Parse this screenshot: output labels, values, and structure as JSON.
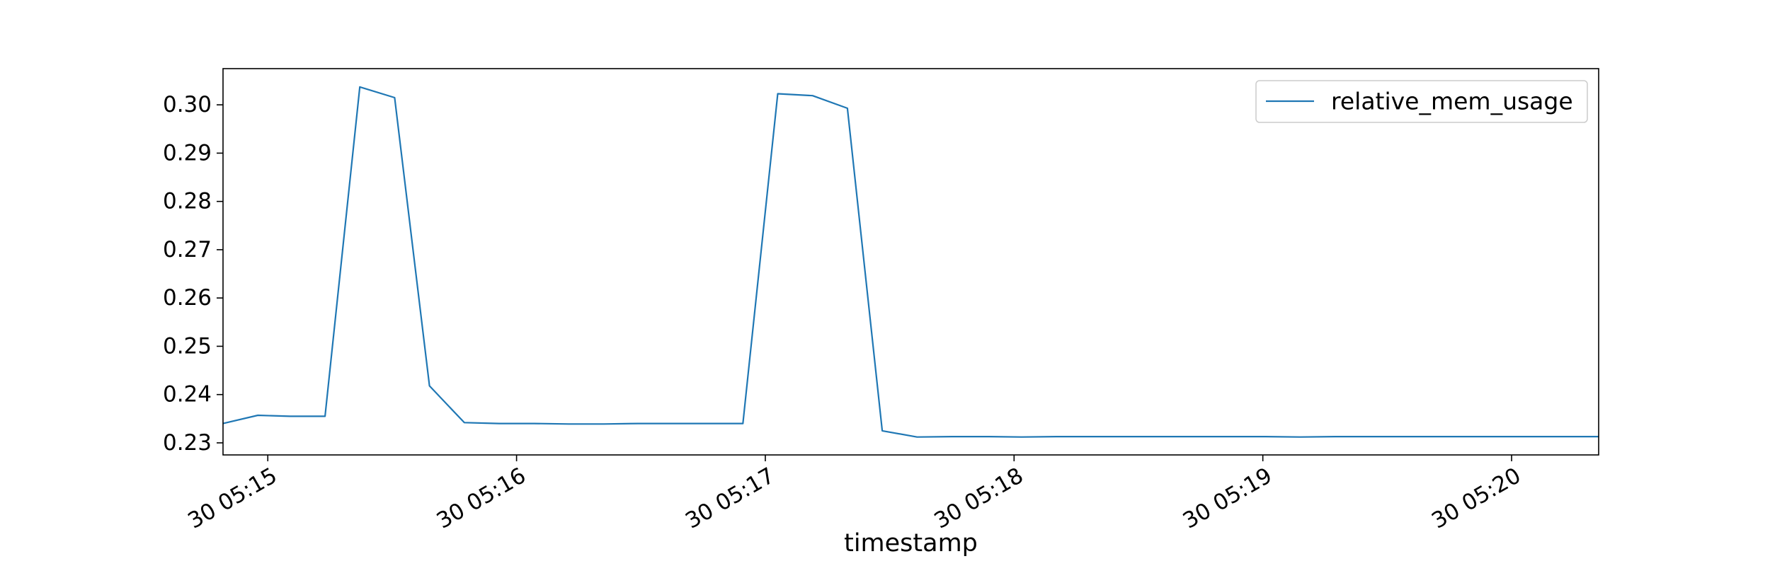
{
  "chart_data": {
    "type": "line",
    "title": "",
    "xlabel": "timestamp",
    "ylabel": "",
    "xlim": [
      -0.18,
      5.35
    ],
    "ylim": [
      0.2275,
      0.3075
    ],
    "x_ticks": [
      {
        "value": 0,
        "label": "30 05:15"
      },
      {
        "value": 1,
        "label": "30 05:16"
      },
      {
        "value": 2,
        "label": "30 05:17"
      },
      {
        "value": 3,
        "label": "30 05:18"
      },
      {
        "value": 4,
        "label": "30 05:19"
      },
      {
        "value": 5,
        "label": "30 05:20"
      }
    ],
    "y_ticks": [
      {
        "value": 0.23,
        "label": "0.23"
      },
      {
        "value": 0.24,
        "label": "0.24"
      },
      {
        "value": 0.25,
        "label": "0.25"
      },
      {
        "value": 0.26,
        "label": "0.26"
      },
      {
        "value": 0.27,
        "label": "0.27"
      },
      {
        "value": 0.28,
        "label": "0.28"
      },
      {
        "value": 0.29,
        "label": "0.29"
      },
      {
        "value": 0.3,
        "label": "0.30"
      }
    ],
    "grid": false,
    "legend": {
      "position": "top-right",
      "entries": [
        "relative_mem_usage"
      ]
    },
    "series": [
      {
        "name": "relative_mem_usage",
        "color": "#1f77b4",
        "x": [
          -0.18,
          -0.04,
          0.09,
          0.23,
          0.37,
          0.51,
          0.65,
          0.79,
          0.93,
          1.07,
          1.21,
          1.35,
          1.49,
          1.63,
          1.77,
          1.91,
          2.05,
          2.19,
          2.33,
          2.47,
          2.61,
          2.75,
          2.89,
          3.03,
          3.17,
          3.31,
          3.45,
          3.59,
          3.73,
          3.87,
          4.01,
          4.15,
          4.29,
          4.43,
          4.57,
          4.71,
          4.85,
          4.99,
          5.13,
          5.35
        ],
        "y": [
          0.234,
          0.2357,
          0.2355,
          0.2355,
          0.3037,
          0.3015,
          0.2418,
          0.2342,
          0.234,
          0.234,
          0.2339,
          0.2339,
          0.234,
          0.234,
          0.234,
          0.234,
          0.3023,
          0.3019,
          0.2993,
          0.2325,
          0.2312,
          0.2313,
          0.2313,
          0.2312,
          0.2313,
          0.2313,
          0.2313,
          0.2313,
          0.2313,
          0.2313,
          0.2313,
          0.2312,
          0.2313,
          0.2313,
          0.2313,
          0.2313,
          0.2313,
          0.2313,
          0.2313,
          0.2313
        ]
      }
    ]
  }
}
